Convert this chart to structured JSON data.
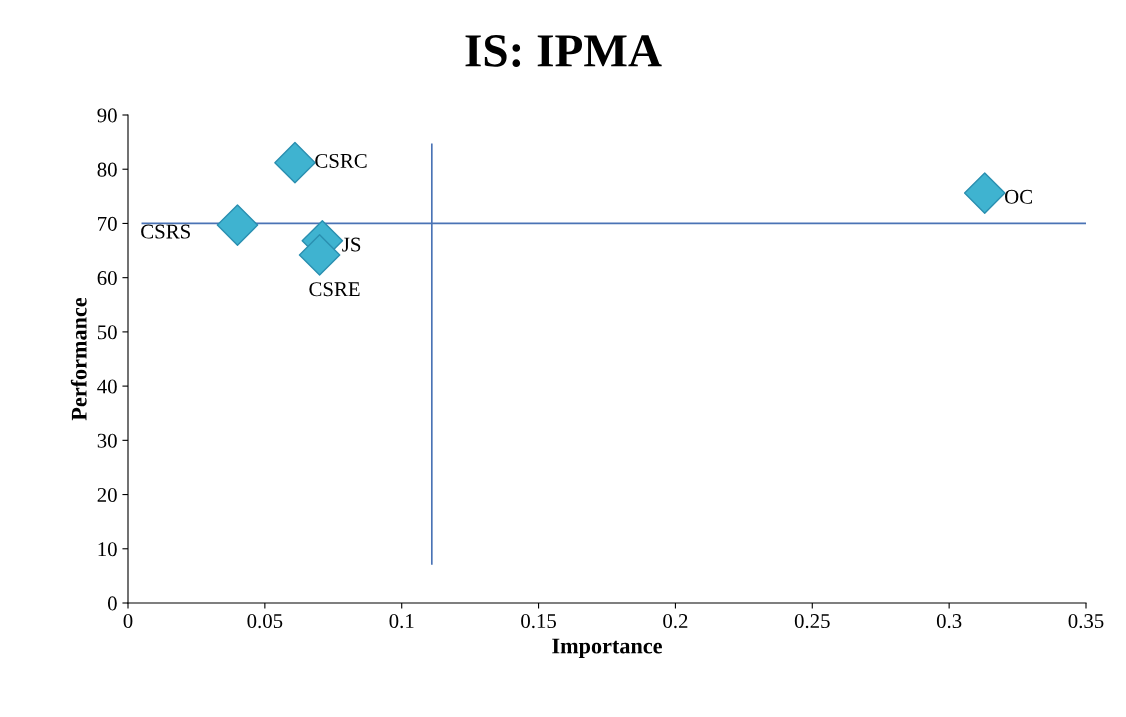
{
  "chart_data": {
    "type": "scatter",
    "title": "IS: IPMA",
    "xlabel": "Importance",
    "ylabel": "Performance",
    "x": [
      0.061,
      0.04,
      0.071,
      0.07,
      0.313
    ],
    "series": [
      {
        "color": "#3fb3d0",
        "values": [
          81.2,
          69.7,
          66.8,
          64.2,
          75.6
        ]
      }
    ],
    "annotations": [
      {
        "text": "CSRC",
        "x": 0.061,
        "y": 81.2
      },
      {
        "text": "CSRS",
        "x": 0.04,
        "y": 69.7
      },
      {
        "text": "JS",
        "x": 0.071,
        "y": 66.8
      },
      {
        "text": "CSRE",
        "x": 0.07,
        "y": 64.2
      },
      {
        "text": "OC",
        "x": 0.313,
        "y": 75.6
      }
    ],
    "ref_lines": [
      {
        "axis": "x",
        "value": 0.111,
        "color": "#4a73b5"
      },
      {
        "axis": "y",
        "value": 70,
        "color": "#4a73b5"
      }
    ],
    "xlim": [
      0,
      0.35
    ],
    "ylim": [
      0,
      90
    ],
    "xticks": [
      0,
      0.05,
      0.1,
      0.15,
      0.2,
      0.25,
      0.3,
      0.35
    ],
    "yticks": [
      0,
      10,
      20,
      30,
      40,
      50,
      60,
      70,
      80,
      90
    ],
    "marker": "diamond",
    "grid": false,
    "legend": false
  }
}
